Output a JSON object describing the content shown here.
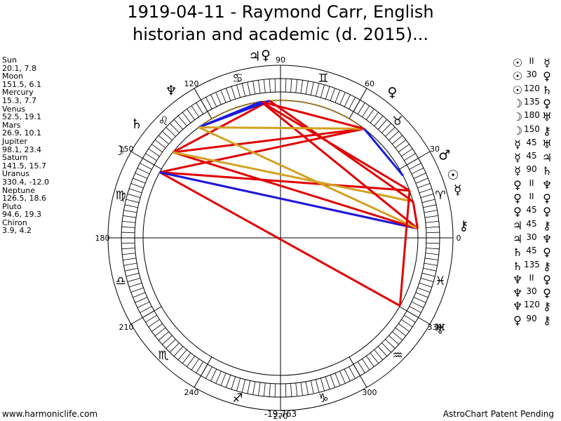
{
  "header": {
    "title_line1": "1919-04-11 - Raymond Carr, English",
    "title_line2": "historian and academic (d. 2015)..."
  },
  "positions": [
    {
      "name": "Sun",
      "value": "20.1, 7.8"
    },
    {
      "name": "Moon",
      "value": "151.5, 6.1"
    },
    {
      "name": "Mercury",
      "value": "15.3, 7.7"
    },
    {
      "name": "Venus",
      "value": "52.5, 19.1"
    },
    {
      "name": "Mars",
      "value": "26.9, 10.1"
    },
    {
      "name": "Jupiter",
      "value": "98.1, 23.4"
    },
    {
      "name": "Saturn",
      "value": "141.5, 15.7"
    },
    {
      "name": "Uranus",
      "value": "330.4, -12.0"
    },
    {
      "name": "Neptune",
      "value": "126.5, 18.6"
    },
    {
      "name": "Pluto",
      "value": "94.6, 19.3"
    },
    {
      "name": "Chiron",
      "value": "3.9, 4.2"
    }
  ],
  "aspects": [
    {
      "p1": "☉",
      "label": "II",
      "p2": "☿"
    },
    {
      "p1": "☉",
      "label": "30",
      "p2": "♀"
    },
    {
      "p1": "☉",
      "label": "120",
      "p2": "♄"
    },
    {
      "p1": "☽",
      "label": "135",
      "p2": "♀"
    },
    {
      "p1": "☽",
      "label": "180",
      "p2": "♅"
    },
    {
      "p1": "☽",
      "label": "150",
      "p2": "⚷"
    },
    {
      "p1": "☿",
      "label": "45",
      "p2": "♅"
    },
    {
      "p1": "☿",
      "label": "45",
      "p2": "♃"
    },
    {
      "p1": "☿",
      "label": "90",
      "p2": "♄"
    },
    {
      "p1": "♀",
      "label": "II",
      "p2": "♆"
    },
    {
      "p1": "♀",
      "label": "II",
      "p2": "♀"
    },
    {
      "p1": "♀",
      "label": "45",
      "p2": "♀"
    },
    {
      "p1": "♃",
      "label": "45",
      "p2": "⚷"
    },
    {
      "p1": "♃",
      "label": "30",
      "p2": "♆"
    },
    {
      "p1": "♄",
      "label": "45",
      "p2": "♀"
    },
    {
      "p1": "♄",
      "label": "135",
      "p2": "⚷"
    },
    {
      "p1": "♆",
      "label": "II",
      "p2": "♀"
    },
    {
      "p1": "♆",
      "label": "30",
      "p2": "♀"
    },
    {
      "p1": "♆",
      "label": "120",
      "p2": "⚷"
    },
    {
      "p1": "♀",
      "label": "90",
      "p2": "⚷"
    }
  ],
  "wheel": {
    "degree_labels": [
      "0",
      "30",
      "60",
      "90",
      "120",
      "150",
      "180",
      "210",
      "240",
      "270",
      "300",
      "330"
    ],
    "signs": [
      {
        "glyph": "♈",
        "lon": 15
      },
      {
        "glyph": "♉",
        "lon": 45
      },
      {
        "glyph": "♊",
        "lon": 75
      },
      {
        "glyph": "♋",
        "lon": 105
      },
      {
        "glyph": "♌",
        "lon": 135
      },
      {
        "glyph": "♍",
        "lon": 165
      },
      {
        "glyph": "♎",
        "lon": 195
      },
      {
        "glyph": "♏",
        "lon": 225
      },
      {
        "glyph": "♐",
        "lon": 255
      },
      {
        "glyph": "♑",
        "lon": 285
      },
      {
        "glyph": "♒",
        "lon": 315
      },
      {
        "glyph": "♓",
        "lon": 345
      }
    ],
    "planets": [
      {
        "id": "sun",
        "glyph": "☉",
        "lon": 20.1
      },
      {
        "id": "moon",
        "glyph": "☽",
        "lon": 151.5
      },
      {
        "id": "mercury",
        "glyph": "☿",
        "lon": 15.3
      },
      {
        "id": "venus",
        "glyph": "♀",
        "lon": 52.5
      },
      {
        "id": "mars",
        "glyph": "♂",
        "lon": 26.9
      },
      {
        "id": "jupiter",
        "glyph": "♃",
        "lon": 98.1
      },
      {
        "id": "saturn",
        "glyph": "♄",
        "lon": 141.5
      },
      {
        "id": "uranus",
        "glyph": "♅",
        "lon": 330.4
      },
      {
        "id": "neptune",
        "glyph": "♆",
        "lon": 126.5
      },
      {
        "id": "pluto",
        "glyph": "♀",
        "lon": 94.6
      },
      {
        "id": "chiron",
        "glyph": "⚷",
        "lon": 3.9
      }
    ],
    "aspect_lines": [
      {
        "a": 151.5,
        "b": 3.9,
        "color": "#e00000"
      },
      {
        "a": 151.5,
        "b": 330.4,
        "color": "#e00000"
      },
      {
        "a": 151.5,
        "b": 52.5,
        "color": "#e00000"
      },
      {
        "a": 151.5,
        "b": 20.1,
        "color": "#e00000"
      },
      {
        "a": 151.5,
        "b": 3.9,
        "color": "#1a1ae0"
      },
      {
        "a": 141.5,
        "b": 52.5,
        "color": "#e00000"
      },
      {
        "a": 141.5,
        "b": 94.6,
        "color": "#e00000"
      },
      {
        "a": 141.5,
        "b": 3.9,
        "color": "#e00000"
      },
      {
        "a": 141.5,
        "b": 15.3,
        "color": "#d4a020"
      },
      {
        "a": 98.1,
        "b": 20.1,
        "color": "#e00000"
      },
      {
        "a": 98.1,
        "b": 3.9,
        "color": "#e00000"
      },
      {
        "a": 94.6,
        "b": 15.3,
        "color": "#e00000"
      },
      {
        "a": 94.6,
        "b": 126.5,
        "color": "#1a1ae0"
      },
      {
        "a": 98.1,
        "b": 126.5,
        "color": "#1a1ae0"
      },
      {
        "a": 52.5,
        "b": 26.9,
        "color": "#1a1ae0"
      },
      {
        "a": 126.5,
        "b": 3.9,
        "color": "#d4a020"
      },
      {
        "a": 126.5,
        "b": 52.5,
        "color": "#d4a020"
      },
      {
        "a": 20.1,
        "b": 330.4,
        "color": "#e00000"
      },
      {
        "a": 98.1,
        "b": 52.5,
        "color": "#e00000"
      },
      {
        "a": 15.3,
        "b": 3.9,
        "color": "#e00000"
      }
    ]
  },
  "footer": {
    "website": "www.harmoniclife.com",
    "value": "-19,763",
    "patent": "AstroChart Patent Pending"
  }
}
